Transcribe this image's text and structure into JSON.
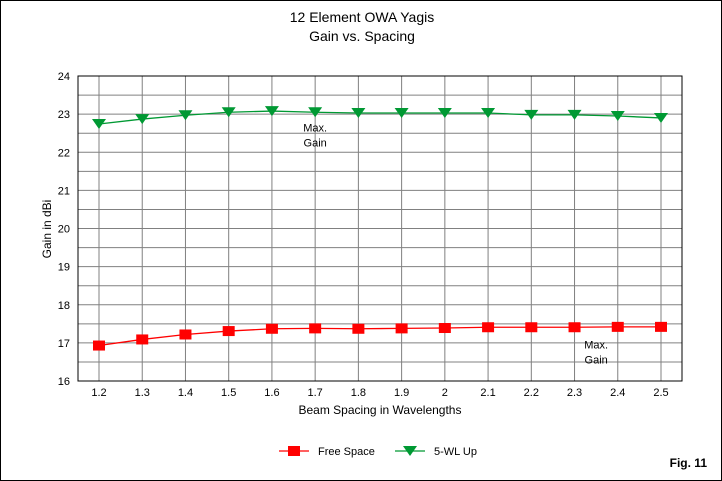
{
  "chart_data": {
    "type": "line",
    "title": [
      "12 Element OWA Yagis",
      "Gain vs. Spacing"
    ],
    "xlabel": "Beam Spacing in Wavelengths",
    "ylabel": "Gain in dBi",
    "x": [
      1.2,
      1.3,
      1.4,
      1.5,
      1.6,
      1.7,
      1.8,
      1.9,
      2,
      2.1,
      2.2,
      2.3,
      2.4,
      2.5
    ],
    "xticks": [
      "1.2",
      "1.3",
      "1.4",
      "1.5",
      "1.6",
      "1.7",
      "1.8",
      "1.9",
      "2",
      "2.1",
      "2.2",
      "2.3",
      "2.4",
      "2.5"
    ],
    "yticks": [
      "16",
      "17",
      "18",
      "19",
      "20",
      "21",
      "22",
      "23",
      "24"
    ],
    "ylim": [
      16,
      24
    ],
    "grid": true,
    "series": [
      {
        "name": "Free Space",
        "color": "#ff0000",
        "marker": "square",
        "values": [
          16.93,
          17.09,
          17.22,
          17.31,
          17.37,
          17.38,
          17.37,
          17.38,
          17.39,
          17.41,
          17.41,
          17.41,
          17.42,
          17.42
        ]
      },
      {
        "name": "5-WL Up",
        "color": "#009933",
        "marker": "triangle-down",
        "values": [
          22.74,
          22.87,
          22.97,
          23.05,
          23.08,
          23.05,
          23.03,
          23.03,
          23.03,
          23.03,
          22.98,
          22.98,
          22.95,
          22.9
        ]
      }
    ],
    "annotations": [
      {
        "text": [
          "Max.",
          "Gain"
        ],
        "x": 1.7,
        "y": 22.55
      },
      {
        "text": [
          "Max.",
          "Gain"
        ],
        "x": 2.35,
        "y": 16.85
      }
    ],
    "legend": "bottom-center",
    "figure_label": "Fig. 11"
  }
}
